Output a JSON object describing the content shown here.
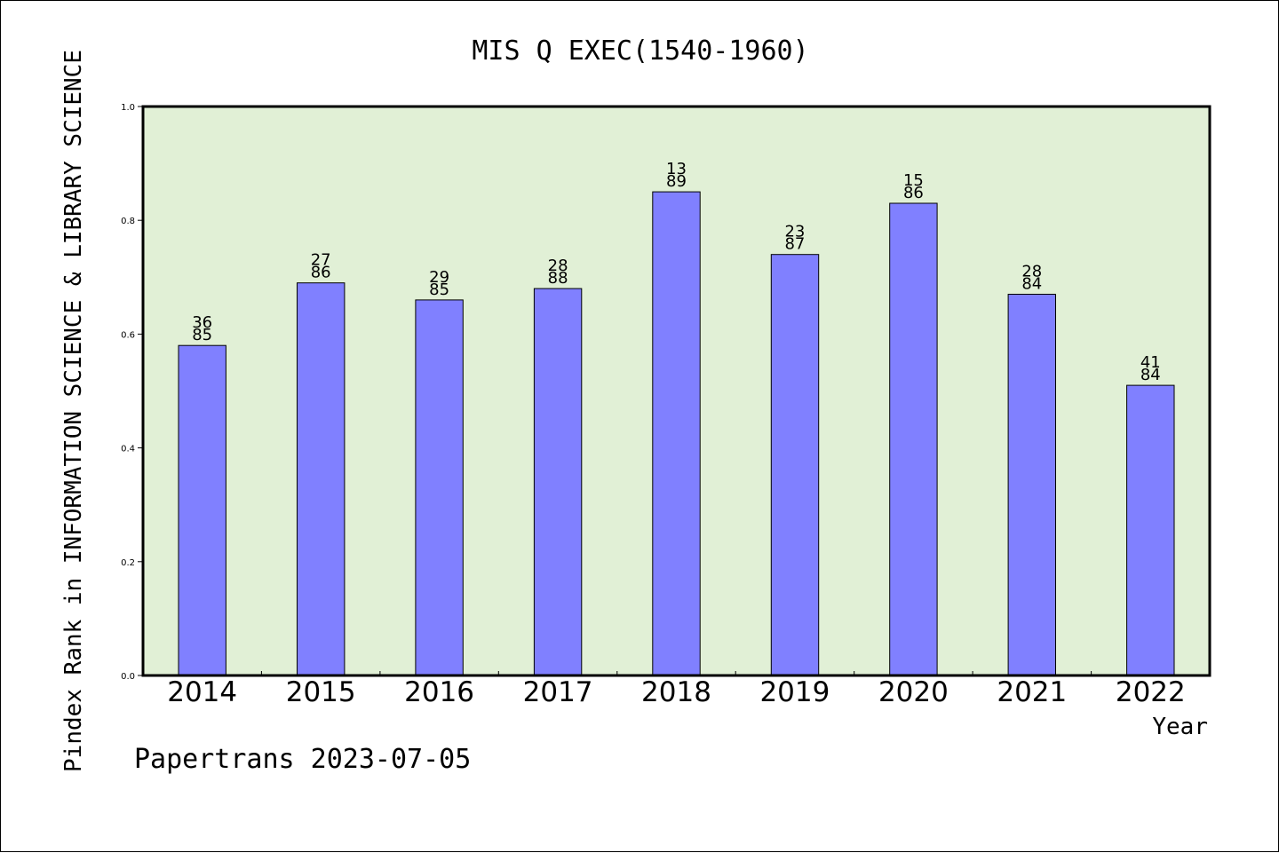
{
  "chart_data": {
    "type": "bar",
    "title": "MIS Q EXEC(1540-1960)",
    "xlabel": "Year",
    "ylabel": "Pindex Rank in INFORMATION SCIENCE & LIBRARY SCIENCE",
    "categories": [
      "2014",
      "2015",
      "2016",
      "2017",
      "2018",
      "2019",
      "2020",
      "2021",
      "2022"
    ],
    "values": [
      0.58,
      0.69,
      0.66,
      0.68,
      0.85,
      0.74,
      0.83,
      0.67,
      0.51
    ],
    "labels_top": [
      "36",
      "27",
      "29",
      "28",
      "13",
      "23",
      "15",
      "28",
      "41"
    ],
    "labels_bottom": [
      "85",
      "86",
      "85",
      "88",
      "89",
      "87",
      "86",
      "84",
      "84"
    ],
    "ylim": [
      0.0,
      1.0
    ],
    "yticks": [
      "0.0",
      "0.2",
      "0.4",
      "0.6",
      "0.8",
      "1.0"
    ],
    "grid": false,
    "legend": "none",
    "colors": {
      "plot_background": "#e1f0d6",
      "bar_fill": "#8080ff",
      "bar_edge": "#000000",
      "axis": "#000000"
    }
  },
  "footer": {
    "watermark": "Papertrans 2023-07-05"
  }
}
